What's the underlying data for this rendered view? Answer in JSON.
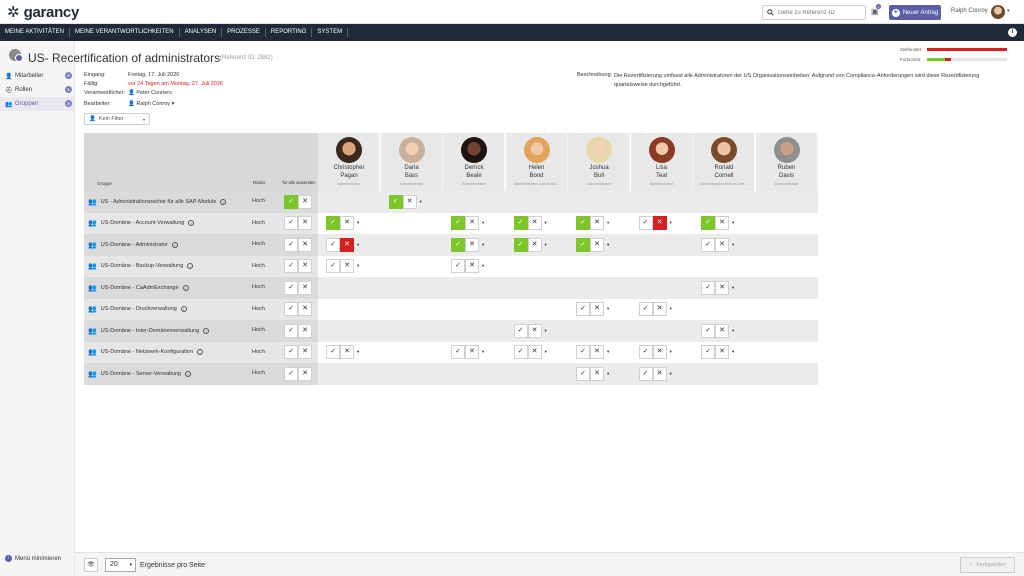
{
  "app": {
    "brand": "garancy",
    "search_placeholder": "Gehe zu Referenz-ID",
    "notif_count": "2",
    "new_request": "Neuer Antrag",
    "user_name": "Ralph Conroy"
  },
  "nav": [
    "MEINE AKTIVITÄTEN",
    "MEINE VERANTWORTLICHKEITEN",
    "ANALYSEN",
    "PROZESSE",
    "REPORTING",
    "SYSTEM"
  ],
  "sidebar": {
    "items": [
      {
        "label": "Mitarbeiter",
        "count": "8"
      },
      {
        "label": "Rollen",
        "count": "1"
      },
      {
        "label": "Gruppen",
        "count": "9"
      }
    ],
    "minimize": "Menü minimieren"
  },
  "page": {
    "title": "US- Recertification of administrators",
    "ref": "(Referenz ID: 2882)",
    "eingang_lbl": "Eingang:",
    "eingang": "Freitag, 17. Juli 2026",
    "faellig_lbl": "Fällig:",
    "faellig": "vor 24 Tagen am Montag, 27. Juli 2026",
    "verantwortlich_lbl": "Verantwortlicher:",
    "verantwortlich": "Peter Conners",
    "bearbeiter_lbl": "Bearbeiter:",
    "bearbeiter": "Ralph Conroy",
    "desc_lbl": "Beschreibung:",
    "desc": "Die Rezertifizierung umfasst alle Administratoren der US Organisationseinheiten. Aufgrund von Compliance-Anforderungen wird diese Rezertifizierung quartalsweise durchgeführt.",
    "zeitfenster_lbl": "Zeitfenster:",
    "zeitfenster": 1.0,
    "zeitfenster_color": "#d61f1f",
    "fortschritt_lbl": "Fortschritt:",
    "fortschritt": 0.3
  },
  "filter": "Kein Filter",
  "table": {
    "col_group": "Gruppe",
    "col_risk": "Risiko",
    "col_all": "für alle anwenden",
    "people": [
      {
        "first": "Christopher",
        "last": "Pagan",
        "role": "Administrator"
      },
      {
        "first": "Darla",
        "last": "Bass",
        "role": "Administrator"
      },
      {
        "first": "Derrick",
        "last": "Beale",
        "role": "Administrator"
      },
      {
        "first": "Helen",
        "last": "Bond",
        "role": "Administrator Active Dir..."
      },
      {
        "first": "Joshua",
        "last": "Bull",
        "role": "Administrator"
      },
      {
        "first": "Lisa",
        "last": "Teal",
        "role": "Administrator"
      },
      {
        "first": "Ronald",
        "last": "Cornell",
        "role": "Administrator Active Dire..."
      },
      {
        "first": "Ruben",
        "last": "Davis",
        "role": "Administrator"
      }
    ],
    "rows": [
      {
        "group": "US - Administrationsrechte für alle SAP-Module",
        "risk": "Hoch",
        "all": "ok",
        "cells": [
          "",
          "ok",
          "",
          "",
          "",
          "",
          "",
          ""
        ]
      },
      {
        "group": "US-Domäne - Account-Verwaltung",
        "risk": "Hoch",
        "all": "",
        "cells": [
          "ok",
          "",
          "ok",
          "ok",
          "ok",
          "no",
          "ok",
          ""
        ]
      },
      {
        "group": "US-Domäne - Administrator",
        "risk": "Hoch",
        "all": "",
        "cells": [
          "no",
          "",
          "ok",
          "ok",
          "ok",
          "",
          "n",
          ""
        ]
      },
      {
        "group": "US-Domäne - Backup-Verwaltung",
        "risk": "Hoch",
        "all": "",
        "cells": [
          "n",
          "",
          "n",
          "",
          "",
          "",
          "",
          ""
        ]
      },
      {
        "group": "US-Domäne - CaAdmExchange",
        "risk": "Hoch",
        "all": "",
        "cells": [
          "",
          "",
          "",
          "",
          "",
          "",
          "n",
          ""
        ]
      },
      {
        "group": "US-Domäne - Druckverwaltung",
        "risk": "Hoch",
        "all": "",
        "cells": [
          "",
          "",
          "",
          "",
          "n",
          "n",
          "",
          ""
        ]
      },
      {
        "group": "US-Domäne - Inter-Domänenverwaltung",
        "risk": "Hoch",
        "all": "",
        "cells": [
          "",
          "",
          "",
          "n",
          "",
          "",
          "n",
          ""
        ]
      },
      {
        "group": "US-Domäne - Netzwerk-Konfiguration",
        "risk": "Hoch",
        "all": "",
        "cells": [
          "n",
          "",
          "n",
          "n",
          "n",
          "n",
          "n",
          ""
        ]
      },
      {
        "group": "US-Domäne - Server-Verwaltung",
        "risk": "Hoch",
        "all": "",
        "cells": [
          "",
          "",
          "",
          "",
          "n",
          "n",
          "",
          ""
        ]
      }
    ]
  },
  "footer": {
    "per_page": "20",
    "per_page_label": "Ergebnisse pro Seite",
    "finish": "Fertigstellen"
  }
}
